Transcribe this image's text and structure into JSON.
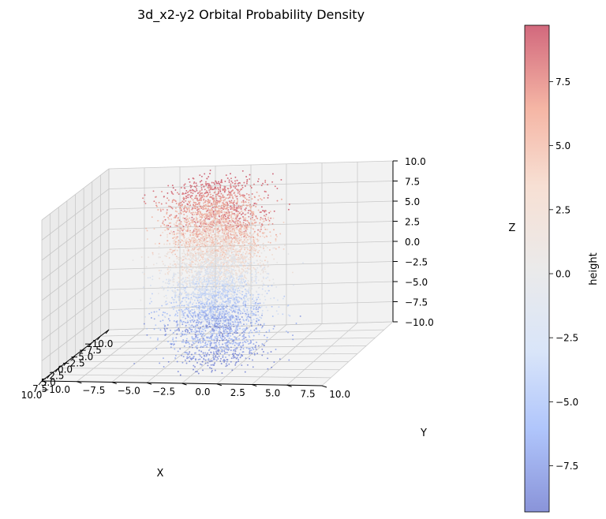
{
  "chart_data": {
    "type": "scatter",
    "projection": "3d",
    "title": "3d_x2-y2 Orbital Probability Density",
    "xlabel": "X",
    "ylabel": "Y",
    "zlabel": "Z",
    "xlim": [
      -10,
      10
    ],
    "ylim": [
      -10,
      10
    ],
    "zlim": [
      -10,
      10
    ],
    "ticks": [
      -10.0,
      -7.5,
      -5.0,
      -2.5,
      0.0,
      2.5,
      5.0,
      7.5,
      10.0
    ],
    "tick_labels": [
      "−10.0",
      "−7.5",
      "−5.0",
      "−2.5",
      "0.0",
      "2.5",
      "5.0",
      "7.5",
      "10.0"
    ],
    "grid": true,
    "series": [
      {
        "color_by": "z",
        "colormap": "coolwarm",
        "alpha": 0.6,
        "point_count_approx": 6000,
        "lobes": [
          {
            "center": [
              -5.0,
              -1.5
            ],
            "spread": [
              2.6,
              1.6
            ]
          },
          {
            "center": [
              5.0,
              1.5
            ],
            "spread": [
              2.6,
              1.6
            ]
          }
        ],
        "z_range": [
          -9.3,
          9.7
        ]
      }
    ],
    "colorbar": {
      "label": "height",
      "min": -9.3,
      "max": 9.7,
      "ticks": [
        -7.5,
        -5.0,
        -2.5,
        0.0,
        2.5,
        5.0,
        7.5
      ],
      "tick_labels": [
        "−7.5",
        "−5.0",
        "−2.5",
        "0.0",
        "2.5",
        "5.0",
        "7.5"
      ],
      "colors": [
        "#3b4cc0",
        "#7b9ff9",
        "#c0d4f5",
        "#dddcdc",
        "#f2cbb7",
        "#ee8468",
        "#b40426"
      ]
    },
    "colors": {
      "pane_back": "#f2f2f2",
      "pane_side": "#ebebeb",
      "pane_floor": "#f4f4f4",
      "grid": "#c8c8c8",
      "axis": "#000000"
    }
  }
}
